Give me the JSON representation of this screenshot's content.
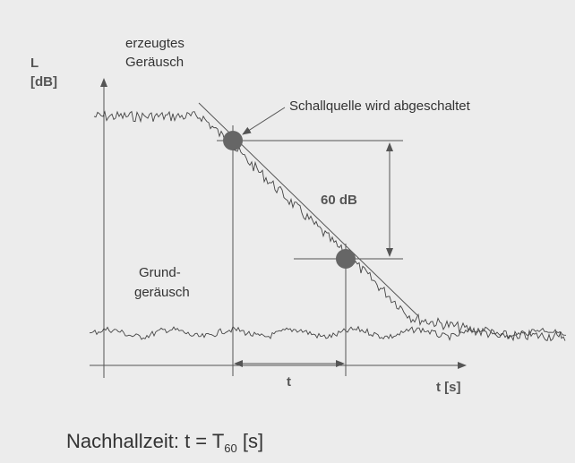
{
  "axis_y": {
    "symbol": "L",
    "unit": "[dB]"
  },
  "axis_x": {
    "label": "t [s]"
  },
  "generated_noise": [
    "erzeugtes",
    "Geräusch"
  ],
  "background_noise": [
    "Grund-",
    "geräusch"
  ],
  "source_off": "Schallquelle wird abgeschaltet",
  "level_drop": "60 dB",
  "interval": "t",
  "caption": {
    "text": "Nachhallzeit: t = T",
    "subscript": "60",
    "unit": " [s]"
  }
}
